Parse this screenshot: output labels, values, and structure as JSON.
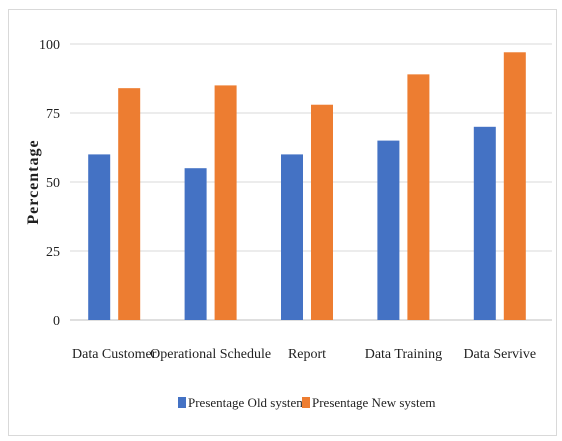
{
  "chart_data": {
    "type": "bar",
    "title": "",
    "xlabel": "",
    "ylabel": "Percentage",
    "categories": [
      "Data Customer",
      "Operational Schedule",
      "Report",
      "Data Training",
      "Data Servive"
    ],
    "series": [
      {
        "name": "Presentage Old system",
        "color": "#4472c4",
        "values": [
          60,
          55,
          60,
          65,
          70
        ]
      },
      {
        "name": "Presentage New system",
        "color": "#ed7d31",
        "values": [
          84,
          85,
          78,
          89,
          97
        ]
      }
    ],
    "ylim": [
      0,
      100
    ],
    "yticks": [
      0,
      25,
      50,
      75,
      100
    ],
    "grid": true,
    "legend_position": "bottom"
  }
}
